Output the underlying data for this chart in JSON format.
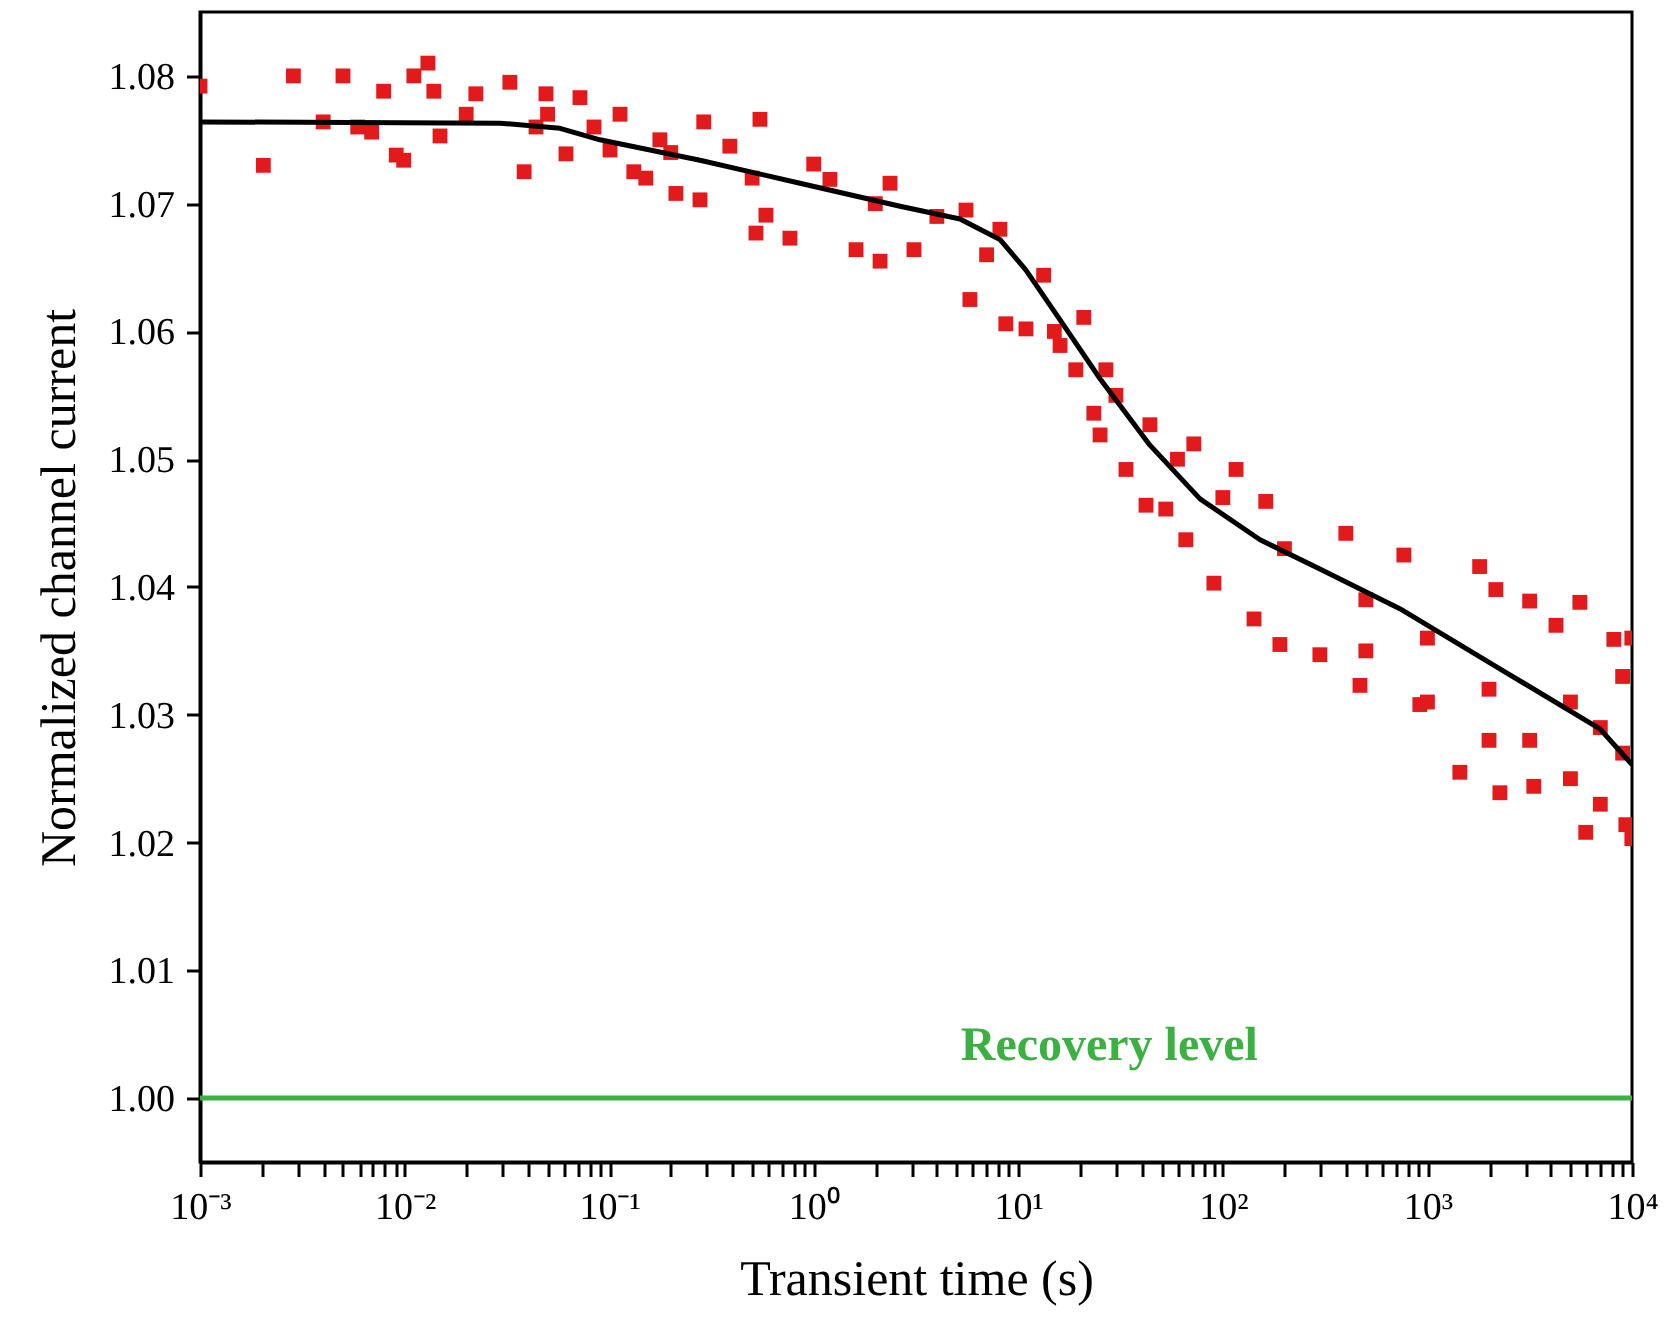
{
  "chart_data": {
    "type": "scatter",
    "xlabel": "Transient time (s)",
    "ylabel": "Normalized channel current",
    "log": "x",
    "grid": false,
    "xlim": [
      0.001,
      10000
    ],
    "ylim": [
      0.995,
      1.085
    ],
    "xticks": [
      {
        "value": 0.001,
        "label": "10⁻³"
      },
      {
        "value": 0.002,
        "label": null
      },
      {
        "value": 0.003,
        "label": null
      },
      {
        "value": 0.004,
        "label": null
      },
      {
        "value": 0.005,
        "label": null
      },
      {
        "value": 0.006,
        "label": null
      },
      {
        "value": 0.007,
        "label": null
      },
      {
        "value": 0.008,
        "label": null
      },
      {
        "value": 0.009,
        "label": null
      },
      {
        "value": 0.01,
        "label": "10⁻²"
      },
      {
        "value": 0.02,
        "label": null
      },
      {
        "value": 0.03,
        "label": null
      },
      {
        "value": 0.04,
        "label": null
      },
      {
        "value": 0.05,
        "label": null
      },
      {
        "value": 0.06,
        "label": null
      },
      {
        "value": 0.07,
        "label": null
      },
      {
        "value": 0.08,
        "label": null
      },
      {
        "value": 0.09,
        "label": null
      },
      {
        "value": 0.1,
        "label": "10⁻¹"
      },
      {
        "value": 0.2,
        "label": null
      },
      {
        "value": 0.3,
        "label": null
      },
      {
        "value": 0.4,
        "label": null
      },
      {
        "value": 0.5,
        "label": null
      },
      {
        "value": 0.6,
        "label": null
      },
      {
        "value": 0.7,
        "label": null
      },
      {
        "value": 0.8,
        "label": null
      },
      {
        "value": 0.9,
        "label": null
      },
      {
        "value": 1,
        "label": "10⁰"
      },
      {
        "value": 2,
        "label": null
      },
      {
        "value": 3,
        "label": null
      },
      {
        "value": 4,
        "label": null
      },
      {
        "value": 5,
        "label": null
      },
      {
        "value": 6,
        "label": null
      },
      {
        "value": 7,
        "label": null
      },
      {
        "value": 8,
        "label": null
      },
      {
        "value": 9,
        "label": null
      },
      {
        "value": 10,
        "label": "10¹"
      },
      {
        "value": 20,
        "label": null
      },
      {
        "value": 30,
        "label": null
      },
      {
        "value": 40,
        "label": null
      },
      {
        "value": 50,
        "label": null
      },
      {
        "value": 60,
        "label": null
      },
      {
        "value": 70,
        "label": null
      },
      {
        "value": 80,
        "label": null
      },
      {
        "value": 90,
        "label": null
      },
      {
        "value": 100,
        "label": "10²"
      },
      {
        "value": 200,
        "label": null
      },
      {
        "value": 300,
        "label": null
      },
      {
        "value": 400,
        "label": null
      },
      {
        "value": 500,
        "label": null
      },
      {
        "value": 600,
        "label": null
      },
      {
        "value": 700,
        "label": null
      },
      {
        "value": 800,
        "label": null
      },
      {
        "value": 900,
        "label": null
      },
      {
        "value": 1000,
        "label": "10³"
      },
      {
        "value": 2000,
        "label": null
      },
      {
        "value": 3000,
        "label": null
      },
      {
        "value": 4000,
        "label": null
      },
      {
        "value": 5000,
        "label": null
      },
      {
        "value": 6000,
        "label": null
      },
      {
        "value": 7000,
        "label": null
      },
      {
        "value": 8000,
        "label": null
      },
      {
        "value": 9000,
        "label": null
      },
      {
        "value": 10000,
        "label": "10⁴"
      }
    ],
    "yticks": [
      {
        "value": 1.0,
        "label": "1.00"
      },
      {
        "value": 1.01,
        "label": "1.01"
      },
      {
        "value": 1.02,
        "label": "1.02"
      },
      {
        "value": 1.03,
        "label": "1.03"
      },
      {
        "value": 1.04,
        "label": "1.04"
      },
      {
        "value": 1.05,
        "label": "1.05"
      },
      {
        "value": 1.06,
        "label": "1.06"
      },
      {
        "value": 1.07,
        "label": "1.07"
      },
      {
        "value": 1.08,
        "label": "1.08"
      }
    ],
    "ref_lines": [
      {
        "axis": "y",
        "value": 1.0,
        "label": "Recovery level",
        "color": "#3cb043",
        "line_style": "solid"
      }
    ],
    "series": [
      {
        "marker": "square",
        "color": "#e31a1c",
        "x": [
          0.001,
          0.00204,
          0.00286,
          0.004,
          0.005,
          0.0059,
          0.0069,
          0.0079,
          0.0091,
          0.0099,
          0.0111,
          0.013,
          0.0139,
          0.0149,
          0.0223,
          0.0327,
          0.0384,
          0.0439,
          0.0491,
          0.0615,
          0.072,
          0.0843,
          0.101,
          0.113,
          0.132,
          0.151,
          0.177,
          0.212,
          0.278,
          0.29,
          0.389,
          0.522,
          0.546,
          0.584,
          0.765,
          1.0,
          1.2,
          1.61,
          2.11,
          2.36,
          3.09,
          5.55,
          5.8,
          8.13,
          8.69,
          10.9,
          13.3,
          16.0,
          19.1,
          20.9,
          23.4,
          25.1,
          26.8,
          33.6,
          42.1,
          44.0,
          52.6,
          65.9,
          72.1,
          90.4,
          116,
          142,
          162,
          190,
          298,
          399,
          468,
          767,
          918,
          1440,
          1800,
          2160,
          2260,
          3160,
          3310,
          4250,
          5560,
          5940,
          8150,
          9330,
          9980,
          9980,
          3160,
          5000,
          5000,
          7000,
          7000,
          9000,
          9000,
          2000,
          2000,
          1000,
          1000,
          500,
          500,
          200,
          100,
          60,
          30,
          15,
          7,
          4,
          2,
          0.5,
          0.2,
          0.05,
          0.02
        ],
        "values": [
          1.0792,
          1.073,
          1.08,
          1.0764,
          1.08,
          1.076,
          1.0756,
          1.0788,
          1.0738,
          1.0734,
          1.08,
          1.081,
          1.0788,
          1.0753,
          1.0786,
          1.0795,
          1.0725,
          1.076,
          1.0786,
          1.0739,
          1.0783,
          1.076,
          1.0742,
          1.077,
          1.0725,
          1.072,
          1.075,
          1.0708,
          1.0703,
          1.0764,
          1.0745,
          1.0677,
          1.0766,
          1.0691,
          1.0673,
          1.0731,
          1.0719,
          1.0664,
          1.0655,
          1.0716,
          1.0664,
          1.0695,
          1.0625,
          1.068,
          1.0606,
          1.0602,
          1.0644,
          1.0589,
          1.057,
          1.0611,
          1.0536,
          1.0519,
          1.057,
          1.0492,
          1.0464,
          1.0527,
          1.0461,
          1.0437,
          1.0512,
          1.0403,
          1.0492,
          1.0375,
          1.0467,
          1.0355,
          1.0347,
          1.0442,
          1.0323,
          1.0425,
          1.0308,
          1.0255,
          1.0416,
          1.0398,
          1.0239,
          1.0389,
          1.0244,
          1.037,
          1.0388,
          1.0208,
          1.0359,
          1.0214,
          1.036,
          1.0203,
          1.028,
          1.031,
          1.025,
          1.029,
          1.023,
          1.027,
          1.033,
          1.032,
          1.028,
          1.036,
          1.031,
          1.039,
          1.035,
          1.043,
          1.047,
          1.05,
          1.055,
          1.06,
          1.066,
          1.069,
          1.07,
          1.072,
          1.074,
          1.077,
          1.077
        ]
      },
      {
        "type": "line",
        "marker": "none",
        "line_style": "solid",
        "color": "#000000",
        "x": [
          0.001,
          0.0292,
          0.0575,
          0.0902,
          0.278,
          0.857,
          2.64,
          5.19,
          6.49,
          8.13,
          10.9,
          16.0,
          25.1,
          44.0,
          77.3,
          152,
          298,
          733,
          2260,
          6970,
          10000
        ],
        "values": [
          1.0764,
          1.0763,
          1.0759,
          1.075,
          1.0734,
          1.0716,
          1.0698,
          1.0688,
          1.068,
          1.0672,
          1.0648,
          1.0609,
          1.0563,
          1.0511,
          1.0469,
          1.0437,
          1.0414,
          1.0383,
          1.0336,
          1.0289,
          1.0261
        ]
      }
    ]
  }
}
